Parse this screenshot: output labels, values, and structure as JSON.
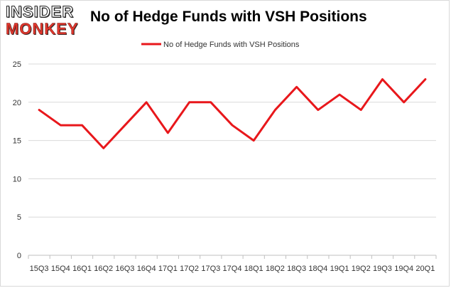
{
  "logo": {
    "line1": "INSIDER",
    "line2": "MONKEY"
  },
  "title": "No of Hedge Funds with VSH Positions",
  "colors": {
    "series": "#e8171b",
    "grid": "#d9d9d9",
    "axis": "#bfbfbf"
  },
  "chart_data": {
    "type": "line",
    "title": "No of Hedge Funds with VSH Positions",
    "xlabel": "",
    "ylabel": "",
    "categories": [
      "15Q3",
      "15Q4",
      "16Q1",
      "16Q2",
      "16Q3",
      "16Q4",
      "17Q1",
      "17Q2",
      "17Q3",
      "17Q4",
      "18Q1",
      "18Q2",
      "18Q3",
      "18Q4",
      "19Q1",
      "19Q2",
      "19Q3",
      "19Q4",
      "20Q1"
    ],
    "series": [
      {
        "name": "No of Hedge Funds with VSH Positions",
        "values": [
          19,
          17,
          17,
          14,
          17,
          20,
          16,
          20,
          20,
          17,
          15,
          19,
          22,
          19,
          21,
          19,
          23,
          20,
          23
        ]
      }
    ],
    "ylim": [
      0,
      25
    ],
    "yticks": [
      "0",
      "5",
      "10",
      "15",
      "20",
      "25"
    ],
    "grid": true,
    "legend": "top-center"
  }
}
